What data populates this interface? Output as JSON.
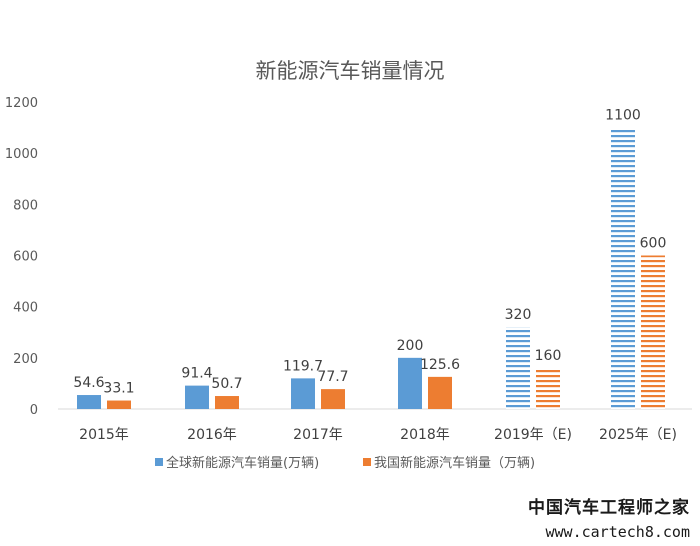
{
  "chart_data": {
    "type": "bar",
    "title": "新能源汽车销量情况",
    "categories": [
      "2015年",
      "2016年",
      "2017年",
      "2018年",
      "2019年（E)",
      "2025年（E)"
    ],
    "forecast": [
      false,
      false,
      false,
      false,
      true,
      true
    ],
    "series": [
      {
        "name": "全球新能源汽车销量(万辆)",
        "color": "#5b9bd5",
        "values": [
          54.6,
          91.4,
          119.7,
          200,
          320,
          1100
        ],
        "labels": [
          "54.6",
          "91.4",
          "119.7",
          "200",
          "320",
          "1100"
        ]
      },
      {
        "name": "我国新能源汽车销量（万辆)",
        "color": "#ed7d31",
        "values": [
          33.1,
          50.7,
          77.7,
          125.6,
          160,
          600
        ],
        "labels": [
          "33.1",
          "50.7",
          "77.7",
          "125.6",
          "160",
          "600"
        ]
      }
    ],
    "yticks": [
      "0",
      "200",
      "400",
      "600",
      "800",
      "1000",
      "1200"
    ],
    "ylim": [
      0,
      1200
    ],
    "grid": false,
    "legend_position": "bottom"
  },
  "watermark": {
    "line1": "中国汽车工程师之家",
    "line2": "www.cartech8.com"
  }
}
